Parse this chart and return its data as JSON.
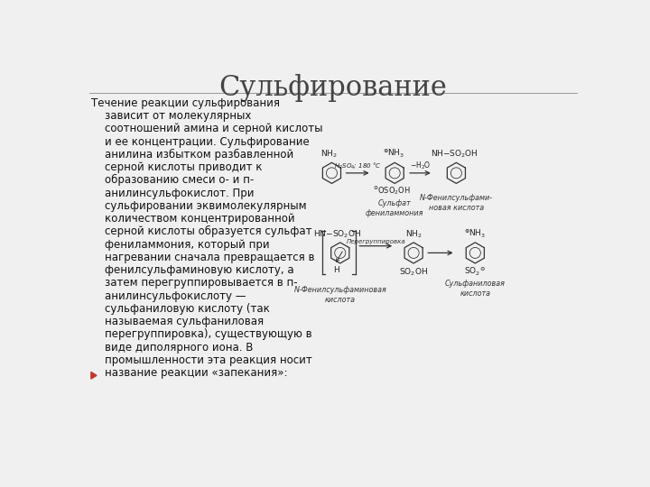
{
  "title": "Сульфирование",
  "title_fontsize": 22,
  "title_color": "#444444",
  "bg_color": "#f0f0f0",
  "text_color": "#111111",
  "text_fontsize": 8.5,
  "bullet_color": "#c0392b",
  "separator_color": "#999999",
  "main_text_lines": [
    "Течение реакции сульфирования",
    "    зависит от молекулярных",
    "    соотношений амина и серной кислоты",
    "    и ее концентрации. Сульфирование",
    "    анилина избытком разбавленной",
    "    серной кислоты приводит к",
    "    образованию смеси о- и п-",
    "    анилинсульфокислот. При",
    "    сульфировании эквимолекулярным",
    "    количеством концентрированной",
    "    серной кислоты образуется сульфат",
    "    фениламмония, который при",
    "    нагревании сначала превращается в",
    "    фенилсульфаминовую кислоту, а",
    "    затем перегруппировывается в п-",
    "    анилинсульфокислоту —",
    "    сульфаниловую кислоту (так",
    "    называемая сульфаниловая",
    "    перегруппировка), существующую в",
    "    виде диполярного иона. В",
    "    промышленности эта реакция носит",
    "    название реакции «запекания»:"
  ]
}
